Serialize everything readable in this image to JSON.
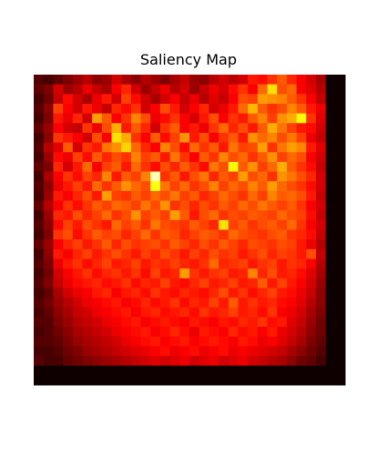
{
  "chart_data": {
    "type": "heatmap",
    "title": "Saliency Map",
    "xlabel": "",
    "ylabel": "",
    "axes_visible": false,
    "colormap": "hot",
    "rows": 32,
    "cols": 32,
    "value_range": [
      0,
      1
    ],
    "values": [
      [
        0.12,
        0.1,
        0.14,
        0.18,
        0.22,
        0.26,
        0.2,
        0.22,
        0.3,
        0.24,
        0.2,
        0.26,
        0.22,
        0.18,
        0.24,
        0.28,
        0.22,
        0.2,
        0.26,
        0.3,
        0.26,
        0.3,
        0.4,
        0.38,
        0.44,
        0.5,
        0.42,
        0.36,
        0.3,
        0.24,
        0.02,
        0.02
      ],
      [
        0.14,
        0.18,
        0.3,
        0.22,
        0.26,
        0.34,
        0.28,
        0.24,
        0.36,
        0.42,
        0.3,
        0.22,
        0.28,
        0.34,
        0.26,
        0.3,
        0.22,
        0.28,
        0.34,
        0.3,
        0.38,
        0.44,
        0.36,
        0.52,
        0.7,
        0.48,
        0.52,
        0.36,
        0.32,
        0.26,
        0.02,
        0.02
      ],
      [
        0.1,
        0.16,
        0.28,
        0.38,
        0.3,
        0.24,
        0.34,
        0.4,
        0.3,
        0.46,
        0.38,
        0.3,
        0.24,
        0.3,
        0.36,
        0.28,
        0.34,
        0.26,
        0.32,
        0.28,
        0.36,
        0.48,
        0.46,
        0.6,
        0.58,
        0.56,
        0.5,
        0.44,
        0.36,
        0.28,
        0.02,
        0.02
      ],
      [
        0.12,
        0.2,
        0.46,
        0.36,
        0.3,
        0.4,
        0.34,
        0.28,
        0.42,
        0.38,
        0.44,
        0.3,
        0.36,
        0.48,
        0.4,
        0.3,
        0.36,
        0.42,
        0.3,
        0.34,
        0.4,
        0.52,
        0.64,
        0.5,
        0.44,
        0.48,
        0.56,
        0.5,
        0.4,
        0.34,
        0.02,
        0.02
      ],
      [
        0.1,
        0.18,
        0.4,
        0.34,
        0.42,
        0.3,
        0.6,
        0.5,
        0.36,
        0.44,
        0.56,
        0.48,
        0.34,
        0.38,
        0.44,
        0.36,
        0.3,
        0.4,
        0.48,
        0.36,
        0.44,
        0.4,
        0.5,
        0.56,
        0.46,
        0.58,
        0.62,
        0.74,
        0.44,
        0.32,
        0.02,
        0.02
      ],
      [
        0.14,
        0.22,
        0.36,
        0.3,
        0.28,
        0.44,
        0.34,
        0.48,
        0.62,
        0.4,
        0.5,
        0.42,
        0.3,
        0.44,
        0.5,
        0.36,
        0.4,
        0.34,
        0.44,
        0.52,
        0.42,
        0.48,
        0.4,
        0.5,
        0.62,
        0.54,
        0.46,
        0.4,
        0.38,
        0.3,
        0.02,
        0.02
      ],
      [
        0.1,
        0.2,
        0.44,
        0.4,
        0.36,
        0.3,
        0.48,
        0.36,
        0.7,
        0.62,
        0.44,
        0.36,
        0.5,
        0.38,
        0.46,
        0.58,
        0.4,
        0.48,
        0.36,
        0.44,
        0.5,
        0.4,
        0.58,
        0.52,
        0.56,
        0.48,
        0.54,
        0.46,
        0.34,
        0.28,
        0.02,
        0.02
      ],
      [
        0.12,
        0.26,
        0.32,
        0.5,
        0.3,
        0.44,
        0.4,
        0.54,
        0.58,
        0.68,
        0.52,
        0.42,
        0.36,
        0.56,
        0.48,
        0.38,
        0.52,
        0.44,
        0.5,
        0.4,
        0.54,
        0.46,
        0.48,
        0.6,
        0.44,
        0.54,
        0.6,
        0.56,
        0.4,
        0.32,
        0.02,
        0.02
      ],
      [
        0.1,
        0.22,
        0.38,
        0.34,
        0.46,
        0.38,
        0.5,
        0.42,
        0.48,
        0.44,
        0.56,
        0.46,
        0.5,
        0.4,
        0.54,
        0.44,
        0.36,
        0.5,
        0.44,
        0.56,
        0.48,
        0.52,
        0.44,
        0.5,
        0.58,
        0.46,
        0.52,
        0.48,
        0.36,
        0.3,
        0.02,
        0.02
      ],
      [
        0.14,
        0.18,
        0.42,
        0.3,
        0.4,
        0.52,
        0.36,
        0.46,
        0.5,
        0.4,
        0.52,
        0.44,
        0.38,
        0.48,
        0.42,
        0.5,
        0.44,
        0.38,
        0.54,
        0.48,
        0.74,
        0.5,
        0.58,
        0.46,
        0.52,
        0.62,
        0.5,
        0.44,
        0.38,
        0.28,
        0.02,
        0.02
      ],
      [
        0.1,
        0.24,
        0.36,
        0.44,
        0.38,
        0.46,
        0.42,
        0.56,
        0.4,
        0.5,
        0.46,
        0.56,
        0.92,
        0.44,
        0.5,
        0.4,
        0.48,
        0.54,
        0.42,
        0.5,
        0.46,
        0.6,
        0.48,
        0.52,
        0.44,
        0.58,
        0.54,
        0.48,
        0.42,
        0.3,
        0.02,
        0.02
      ],
      [
        0.12,
        0.2,
        0.34,
        0.4,
        0.46,
        0.4,
        0.52,
        0.44,
        0.5,
        0.58,
        0.52,
        0.48,
        0.76,
        0.54,
        0.46,
        0.52,
        0.44,
        0.48,
        0.56,
        0.46,
        0.52,
        0.48,
        0.56,
        0.5,
        0.6,
        0.52,
        0.48,
        0.44,
        0.38,
        0.3,
        0.02,
        0.02
      ],
      [
        0.1,
        0.22,
        0.4,
        0.36,
        0.42,
        0.48,
        0.4,
        0.6,
        0.46,
        0.44,
        0.5,
        0.46,
        0.52,
        0.48,
        0.54,
        0.46,
        0.5,
        0.42,
        0.46,
        0.52,
        0.48,
        0.44,
        0.52,
        0.46,
        0.56,
        0.5,
        0.52,
        0.48,
        0.4,
        0.28,
        0.02,
        0.02
      ],
      [
        0.14,
        0.26,
        0.36,
        0.44,
        0.38,
        0.44,
        0.5,
        0.46,
        0.52,
        0.5,
        0.46,
        0.54,
        0.48,
        0.58,
        0.44,
        0.48,
        0.42,
        0.48,
        0.44,
        0.5,
        0.46,
        0.52,
        0.48,
        0.54,
        0.5,
        0.46,
        0.5,
        0.44,
        0.36,
        0.3,
        0.02,
        0.02
      ],
      [
        0.1,
        0.22,
        0.42,
        0.4,
        0.48,
        0.42,
        0.46,
        0.52,
        0.44,
        0.48,
        0.58,
        0.46,
        0.5,
        0.46,
        0.6,
        0.5,
        0.4,
        0.48,
        0.52,
        0.44,
        0.48,
        0.46,
        0.5,
        0.48,
        0.46,
        0.52,
        0.48,
        0.46,
        0.38,
        0.28,
        0.02,
        0.02
      ],
      [
        0.12,
        0.2,
        0.38,
        0.46,
        0.4,
        0.48,
        0.44,
        0.4,
        0.52,
        0.46,
        0.5,
        0.44,
        0.54,
        0.48,
        0.46,
        0.44,
        0.5,
        0.46,
        0.42,
        0.7,
        0.46,
        0.5,
        0.44,
        0.48,
        0.5,
        0.46,
        0.52,
        0.44,
        0.36,
        0.3,
        0.02,
        0.02
      ],
      [
        0.1,
        0.18,
        0.44,
        0.48,
        0.38,
        0.44,
        0.5,
        0.46,
        0.48,
        0.42,
        0.46,
        0.52,
        0.44,
        0.5,
        0.48,
        0.42,
        0.46,
        0.5,
        0.48,
        0.44,
        0.52,
        0.48,
        0.46,
        0.44,
        0.48,
        0.5,
        0.44,
        0.42,
        0.38,
        0.28,
        0.02,
        0.02
      ],
      [
        0.14,
        0.22,
        0.36,
        0.42,
        0.46,
        0.4,
        0.44,
        0.5,
        0.42,
        0.48,
        0.44,
        0.46,
        0.48,
        0.44,
        0.5,
        0.46,
        0.42,
        0.48,
        0.44,
        0.5,
        0.46,
        0.42,
        0.48,
        0.46,
        0.44,
        0.48,
        0.46,
        0.4,
        0.34,
        0.26,
        0.02,
        0.02
      ],
      [
        0.1,
        0.2,
        0.4,
        0.36,
        0.42,
        0.46,
        0.4,
        0.44,
        0.48,
        0.44,
        0.4,
        0.46,
        0.42,
        0.48,
        0.44,
        0.4,
        0.46,
        0.42,
        0.48,
        0.44,
        0.46,
        0.4,
        0.44,
        0.48,
        0.42,
        0.46,
        0.44,
        0.4,
        0.48,
        0.28,
        0.02,
        0.02
      ],
      [
        0.12,
        0.18,
        0.34,
        0.4,
        0.44,
        0.38,
        0.42,
        0.46,
        0.4,
        0.42,
        0.46,
        0.4,
        0.44,
        0.42,
        0.46,
        0.42,
        0.4,
        0.44,
        0.52,
        0.42,
        0.44,
        0.46,
        0.4,
        0.44,
        0.46,
        0.4,
        0.44,
        0.42,
        0.36,
        0.26,
        0.02,
        0.02
      ],
      [
        0.1,
        0.16,
        0.3,
        0.36,
        0.4,
        0.44,
        0.38,
        0.42,
        0.44,
        0.4,
        0.44,
        0.38,
        0.46,
        0.4,
        0.42,
        0.6,
        0.44,
        0.4,
        0.44,
        0.46,
        0.4,
        0.42,
        0.56,
        0.42,
        0.48,
        0.4,
        0.42,
        0.38,
        0.32,
        0.24,
        0.02,
        0.02
      ],
      [
        0.12,
        0.18,
        0.28,
        0.34,
        0.38,
        0.4,
        0.42,
        0.38,
        0.4,
        0.44,
        0.38,
        0.42,
        0.4,
        0.46,
        0.4,
        0.38,
        0.42,
        0.46,
        0.4,
        0.42,
        0.46,
        0.4,
        0.42,
        0.5,
        0.4,
        0.46,
        0.4,
        0.36,
        0.3,
        0.22,
        0.02,
        0.02
      ],
      [
        0.1,
        0.14,
        0.24,
        0.3,
        0.34,
        0.36,
        0.4,
        0.42,
        0.36,
        0.4,
        0.42,
        0.38,
        0.44,
        0.4,
        0.38,
        0.42,
        0.4,
        0.38,
        0.42,
        0.48,
        0.4,
        0.44,
        0.38,
        0.42,
        0.46,
        0.4,
        0.38,
        0.34,
        0.28,
        0.2,
        0.02,
        0.02
      ],
      [
        0.12,
        0.16,
        0.22,
        0.26,
        0.3,
        0.34,
        0.36,
        0.38,
        0.4,
        0.36,
        0.38,
        0.42,
        0.38,
        0.4,
        0.44,
        0.38,
        0.42,
        0.4,
        0.46,
        0.4,
        0.5,
        0.4,
        0.44,
        0.4,
        0.42,
        0.38,
        0.36,
        0.32,
        0.26,
        0.2,
        0.02,
        0.02
      ],
      [
        0.1,
        0.14,
        0.2,
        0.24,
        0.28,
        0.3,
        0.34,
        0.36,
        0.38,
        0.4,
        0.36,
        0.4,
        0.42,
        0.38,
        0.4,
        0.42,
        0.38,
        0.44,
        0.4,
        0.42,
        0.46,
        0.4,
        0.42,
        0.38,
        0.44,
        0.36,
        0.34,
        0.3,
        0.24,
        0.18,
        0.02,
        0.02
      ],
      [
        0.12,
        0.12,
        0.18,
        0.22,
        0.26,
        0.28,
        0.3,
        0.34,
        0.36,
        0.38,
        0.4,
        0.36,
        0.38,
        0.4,
        0.38,
        0.36,
        0.4,
        0.38,
        0.36,
        0.4,
        0.38,
        0.42,
        0.4,
        0.44,
        0.38,
        0.4,
        0.32,
        0.28,
        0.22,
        0.16,
        0.02,
        0.02
      ],
      [
        0.1,
        0.12,
        0.16,
        0.2,
        0.24,
        0.26,
        0.28,
        0.3,
        0.34,
        0.36,
        0.38,
        0.4,
        0.36,
        0.38,
        0.42,
        0.38,
        0.34,
        0.4,
        0.38,
        0.36,
        0.42,
        0.38,
        0.4,
        0.36,
        0.4,
        0.34,
        0.3,
        0.26,
        0.2,
        0.16,
        0.02,
        0.02
      ],
      [
        0.12,
        0.12,
        0.14,
        0.18,
        0.22,
        0.24,
        0.26,
        0.28,
        0.3,
        0.34,
        0.36,
        0.38,
        0.4,
        0.36,
        0.38,
        0.4,
        0.36,
        0.38,
        0.4,
        0.38,
        0.36,
        0.4,
        0.38,
        0.34,
        0.36,
        0.32,
        0.28,
        0.24,
        0.18,
        0.14,
        0.02,
        0.02
      ],
      [
        0.1,
        0.1,
        0.12,
        0.16,
        0.18,
        0.22,
        0.24,
        0.26,
        0.28,
        0.3,
        0.32,
        0.34,
        0.36,
        0.38,
        0.34,
        0.36,
        0.38,
        0.34,
        0.36,
        0.38,
        0.34,
        0.36,
        0.34,
        0.32,
        0.3,
        0.28,
        0.24,
        0.2,
        0.16,
        0.12,
        0.02,
        0.02
      ],
      [
        0.12,
        0.1,
        0.1,
        0.14,
        0.16,
        0.18,
        0.2,
        0.22,
        0.24,
        0.26,
        0.28,
        0.3,
        0.32,
        0.3,
        0.32,
        0.34,
        0.3,
        0.32,
        0.34,
        0.3,
        0.32,
        0.34,
        0.3,
        0.28,
        0.26,
        0.24,
        0.2,
        0.16,
        0.14,
        0.1,
        0.02,
        0.02
      ],
      [
        0.02,
        0.02,
        0.02,
        0.02,
        0.02,
        0.02,
        0.02,
        0.02,
        0.02,
        0.02,
        0.02,
        0.02,
        0.02,
        0.02,
        0.02,
        0.02,
        0.02,
        0.02,
        0.02,
        0.02,
        0.02,
        0.02,
        0.02,
        0.02,
        0.02,
        0.02,
        0.02,
        0.02,
        0.02,
        0.02,
        0.02,
        0.02
      ],
      [
        0.02,
        0.02,
        0.02,
        0.02,
        0.02,
        0.02,
        0.02,
        0.02,
        0.02,
        0.02,
        0.02,
        0.02,
        0.02,
        0.02,
        0.02,
        0.02,
        0.02,
        0.02,
        0.02,
        0.02,
        0.02,
        0.02,
        0.02,
        0.02,
        0.02,
        0.02,
        0.02,
        0.02,
        0.02,
        0.02,
        0.02,
        0.02
      ]
    ]
  }
}
